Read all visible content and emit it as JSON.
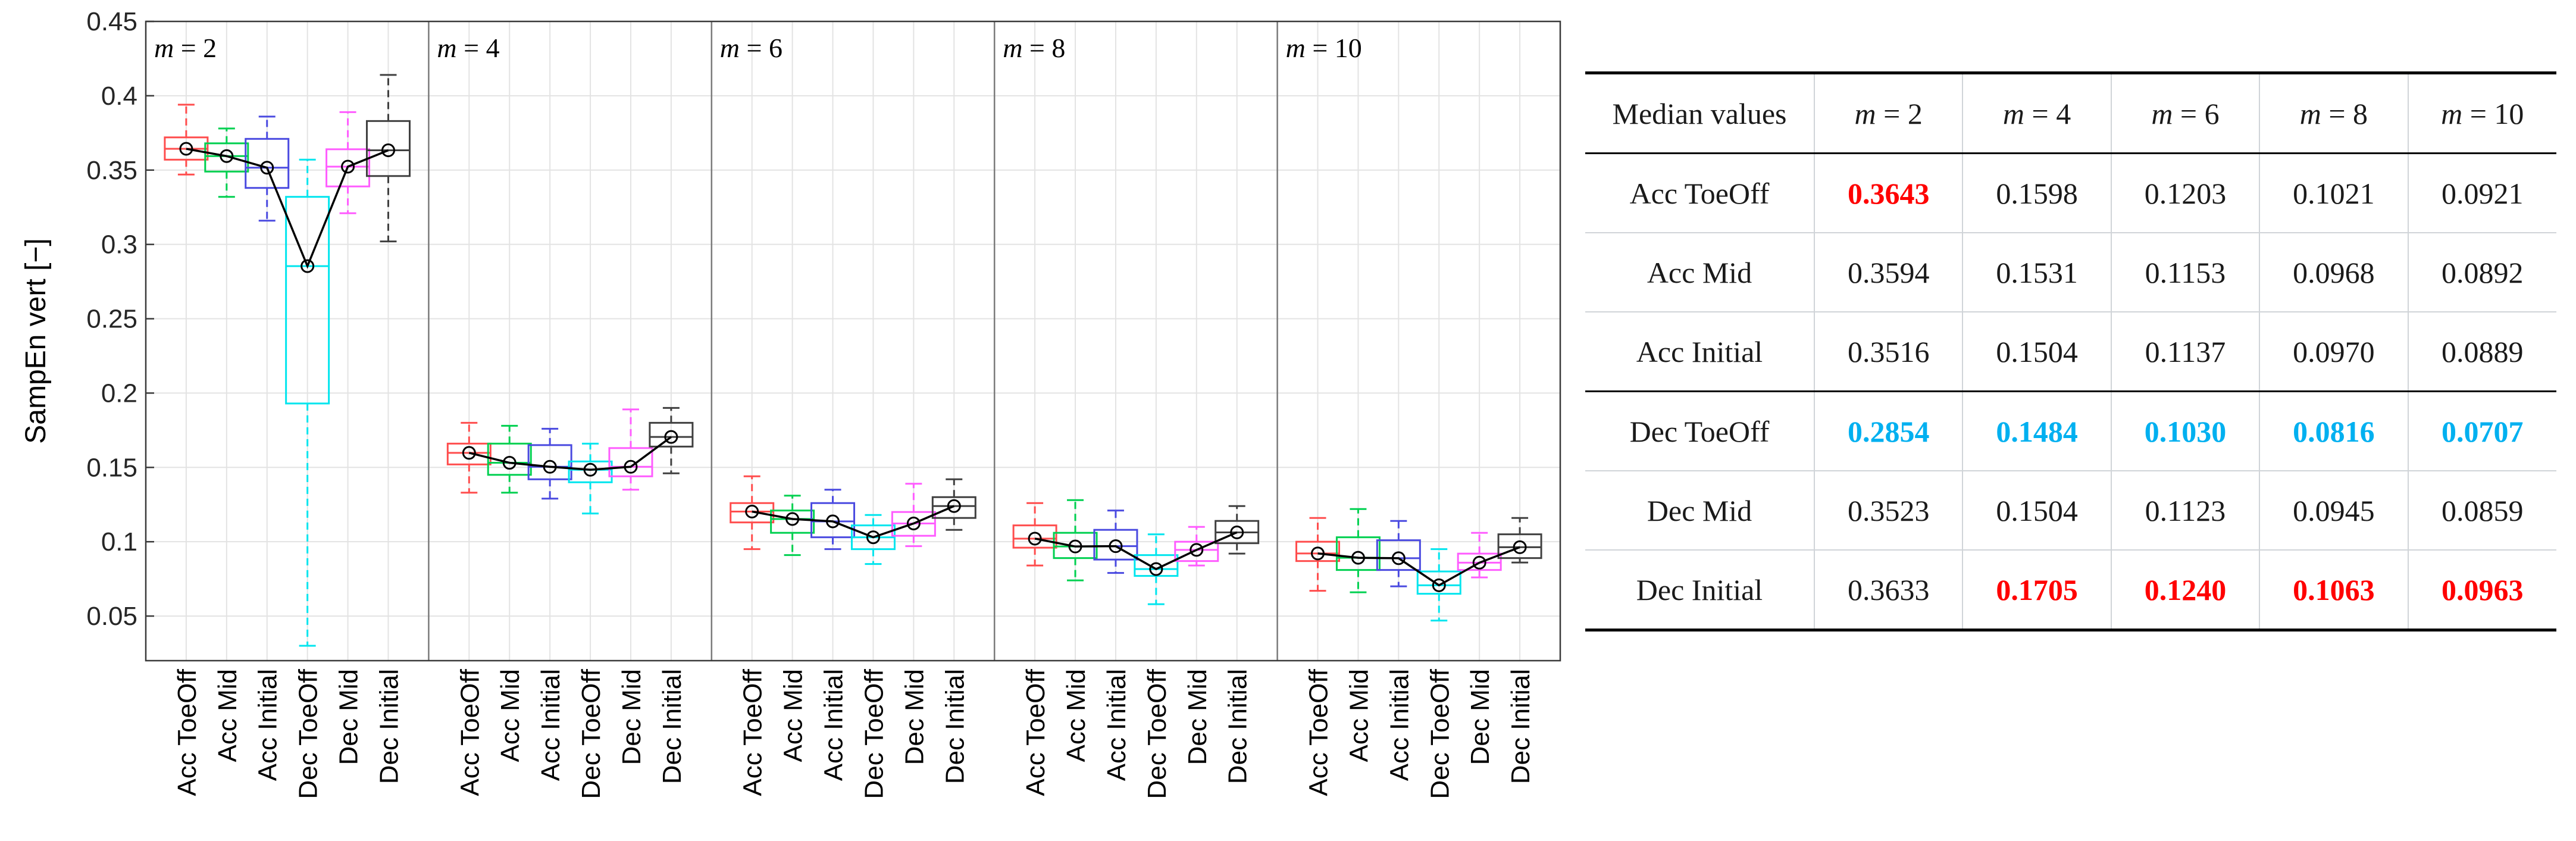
{
  "chart_data": {
    "type": "box",
    "ylabel": "SampEn vert [−]",
    "ylim": [
      0.02,
      0.45
    ],
    "yticks": [
      "0.05",
      "0.1",
      "0.15",
      "0.2",
      "0.25",
      "0.3",
      "0.35",
      "0.4",
      "0.45"
    ],
    "categories": [
      "Acc ToeOff",
      "Acc Mid",
      "Acc Initial",
      "Dec ToeOff",
      "Dec Mid",
      "Dec Initial"
    ],
    "colors": [
      "#ff4d4d",
      "#00d050",
      "#4a4ae0",
      "#00e5ee",
      "#ff5cff",
      "#404040"
    ],
    "grid": true,
    "panels": [
      {
        "m": "2",
        "boxes": [
          {
            "median": 0.3643,
            "q1": 0.357,
            "q3": 0.372,
            "whisker_low": 0.347,
            "whisker_high": 0.394
          },
          {
            "median": 0.3594,
            "q1": 0.349,
            "q3": 0.368,
            "whisker_low": 0.332,
            "whisker_high": 0.378
          },
          {
            "median": 0.3516,
            "q1": 0.338,
            "q3": 0.371,
            "whisker_low": 0.316,
            "whisker_high": 0.386
          },
          {
            "median": 0.2854,
            "q1": 0.193,
            "q3": 0.332,
            "whisker_low": 0.03,
            "whisker_high": 0.357
          },
          {
            "median": 0.3523,
            "q1": 0.339,
            "q3": 0.364,
            "whisker_low": 0.321,
            "whisker_high": 0.389
          },
          {
            "median": 0.3633,
            "q1": 0.346,
            "q3": 0.383,
            "whisker_low": 0.302,
            "whisker_high": 0.414
          }
        ]
      },
      {
        "m": "4",
        "boxes": [
          {
            "median": 0.1598,
            "q1": 0.152,
            "q3": 0.166,
            "whisker_low": 0.133,
            "whisker_high": 0.18
          },
          {
            "median": 0.1531,
            "q1": 0.145,
            "q3": 0.166,
            "whisker_low": 0.133,
            "whisker_high": 0.178
          },
          {
            "median": 0.1504,
            "q1": 0.142,
            "q3": 0.165,
            "whisker_low": 0.129,
            "whisker_high": 0.176
          },
          {
            "median": 0.1484,
            "q1": 0.14,
            "q3": 0.154,
            "whisker_low": 0.119,
            "whisker_high": 0.166
          },
          {
            "median": 0.1504,
            "q1": 0.144,
            "q3": 0.163,
            "whisker_low": 0.135,
            "whisker_high": 0.189
          },
          {
            "median": 0.1705,
            "q1": 0.164,
            "q3": 0.18,
            "whisker_low": 0.146,
            "whisker_high": 0.19
          }
        ]
      },
      {
        "m": "6",
        "boxes": [
          {
            "median": 0.1203,
            "q1": 0.113,
            "q3": 0.126,
            "whisker_low": 0.095,
            "whisker_high": 0.144
          },
          {
            "median": 0.1153,
            "q1": 0.106,
            "q3": 0.121,
            "whisker_low": 0.091,
            "whisker_high": 0.131
          },
          {
            "median": 0.1137,
            "q1": 0.103,
            "q3": 0.126,
            "whisker_low": 0.095,
            "whisker_high": 0.135
          },
          {
            "median": 0.103,
            "q1": 0.095,
            "q3": 0.111,
            "whisker_low": 0.085,
            "whisker_high": 0.118
          },
          {
            "median": 0.1123,
            "q1": 0.104,
            "q3": 0.12,
            "whisker_low": 0.097,
            "whisker_high": 0.139
          },
          {
            "median": 0.124,
            "q1": 0.116,
            "q3": 0.13,
            "whisker_low": 0.108,
            "whisker_high": 0.142
          }
        ]
      },
      {
        "m": "8",
        "boxes": [
          {
            "median": 0.1021,
            "q1": 0.096,
            "q3": 0.111,
            "whisker_low": 0.084,
            "whisker_high": 0.126
          },
          {
            "median": 0.0968,
            "q1": 0.089,
            "q3": 0.106,
            "whisker_low": 0.074,
            "whisker_high": 0.128
          },
          {
            "median": 0.097,
            "q1": 0.088,
            "q3": 0.108,
            "whisker_low": 0.079,
            "whisker_high": 0.121
          },
          {
            "median": 0.0816,
            "q1": 0.077,
            "q3": 0.091,
            "whisker_low": 0.058,
            "whisker_high": 0.105
          },
          {
            "median": 0.0945,
            "q1": 0.087,
            "q3": 0.1,
            "whisker_low": 0.084,
            "whisker_high": 0.11
          },
          {
            "median": 0.1063,
            "q1": 0.099,
            "q3": 0.114,
            "whisker_low": 0.092,
            "whisker_high": 0.124
          }
        ]
      },
      {
        "m": "10",
        "boxes": [
          {
            "median": 0.0921,
            "q1": 0.087,
            "q3": 0.1,
            "whisker_low": 0.067,
            "whisker_high": 0.116
          },
          {
            "median": 0.0892,
            "q1": 0.081,
            "q3": 0.103,
            "whisker_low": 0.066,
            "whisker_high": 0.122
          },
          {
            "median": 0.0889,
            "q1": 0.081,
            "q3": 0.101,
            "whisker_low": 0.07,
            "whisker_high": 0.114
          },
          {
            "median": 0.0707,
            "q1": 0.065,
            "q3": 0.08,
            "whisker_low": 0.047,
            "whisker_high": 0.095
          },
          {
            "median": 0.0859,
            "q1": 0.081,
            "q3": 0.092,
            "whisker_low": 0.076,
            "whisker_high": 0.106
          },
          {
            "median": 0.0963,
            "q1": 0.089,
            "q3": 0.105,
            "whisker_low": 0.086,
            "whisker_high": 0.116
          }
        ]
      }
    ]
  },
  "table": {
    "header": [
      "Median values",
      "m = 2",
      "m = 4",
      "m = 6",
      "m = 8",
      "m = 10"
    ],
    "rows": [
      {
        "label": "Acc ToeOff",
        "values": [
          "0.3643",
          "0.1598",
          "0.1203",
          "0.1021",
          "0.0921"
        ],
        "highlights": [
          "red",
          "",
          "",
          "",
          ""
        ]
      },
      {
        "label": "Acc Mid",
        "values": [
          "0.3594",
          "0.1531",
          "0.1153",
          "0.0968",
          "0.0892"
        ],
        "highlights": [
          "",
          "",
          "",
          "",
          ""
        ]
      },
      {
        "label": "Acc Initial",
        "values": [
          "0.3516",
          "0.1504",
          "0.1137",
          "0.0970",
          "0.0889"
        ],
        "highlights": [
          "",
          "",
          "",
          "",
          ""
        ]
      },
      {
        "label": "Dec ToeOff",
        "values": [
          "0.2854",
          "0.1484",
          "0.1030",
          "0.0816",
          "0.0707"
        ],
        "highlights": [
          "cyan",
          "cyan",
          "cyan",
          "cyan",
          "cyan"
        ]
      },
      {
        "label": "Dec Mid",
        "values": [
          "0.3523",
          "0.1504",
          "0.1123",
          "0.0945",
          "0.0859"
        ],
        "highlights": [
          "",
          "",
          "",
          "",
          ""
        ]
      },
      {
        "label": "Dec Initial",
        "values": [
          "0.3633",
          "0.1705",
          "0.1240",
          "0.1063",
          "0.0963"
        ],
        "highlights": [
          "",
          "red",
          "red",
          "red",
          "red"
        ]
      }
    ],
    "highlight_colors": {
      "red": "#ff0000",
      "cyan": "#00b0f0"
    }
  }
}
